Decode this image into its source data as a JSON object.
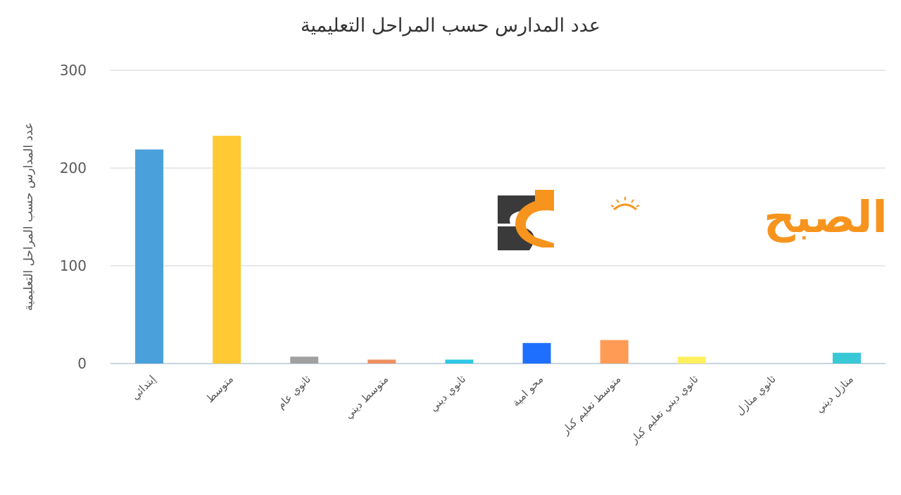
{
  "chart_data": {
    "type": "bar",
    "title": "عدد المدارس حسب المراحل التعليمية",
    "ylabel": "عدد المدارس حسب المراحل التعليمية",
    "xlabel": "",
    "ylim": [
      0,
      300
    ],
    "yticks": [
      "0",
      "100",
      "200",
      "300"
    ],
    "grid": true,
    "categories": [
      "إبتدائي",
      "متوسط",
      "ثانوي عام",
      "متوسط ديني",
      "ثانوي ديني",
      "محو امية",
      "متوسط تعليم كبار",
      "ثانوي ديني تعليم كبار",
      "ثانوي منازل",
      "منازل ديني"
    ],
    "values": [
      219,
      233,
      7,
      4,
      4,
      21,
      24,
      7,
      0,
      11
    ],
    "colors": [
      "#4aa0db",
      "#ffc933",
      "#a0a0a0",
      "#ee9060",
      "#2ec8e6",
      "#1f6fff",
      "#ff9b55",
      "#fff060",
      "#cccccc",
      "#38c8d6"
    ]
  },
  "watermark": {
    "text": "بوابة الصبح",
    "text_color": "#f7941d",
    "logo_dark": "#3a3a3a",
    "logo_orange": "#f7941d"
  }
}
